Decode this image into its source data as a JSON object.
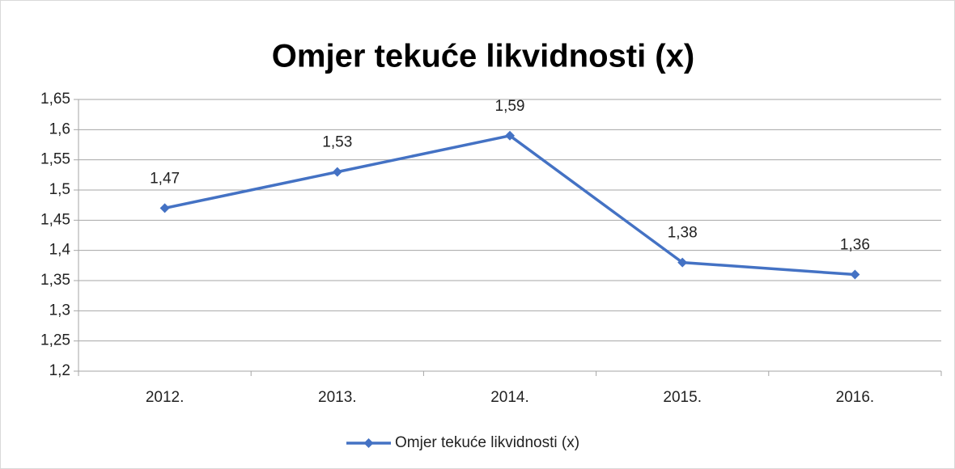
{
  "chart_data": {
    "type": "line",
    "title": "Omjer tekuće likvidnosti (x)",
    "categories": [
      "2012.",
      "2013.",
      "2014.",
      "2015.",
      "2016."
    ],
    "series": [
      {
        "name": "Omjer tekuće likvidnosti (x)",
        "color": "#4472c4",
        "values": [
          1.47,
          1.53,
          1.59,
          1.38,
          1.36
        ],
        "value_labels": [
          "1,47",
          "1,53",
          "1,59",
          "1,38",
          "1,36"
        ]
      }
    ],
    "ylim": [
      1.2,
      1.65
    ],
    "yticks": [
      {
        "value": 1.2,
        "label": "1,2"
      },
      {
        "value": 1.25,
        "label": "1,25"
      },
      {
        "value": 1.3,
        "label": "1,3"
      },
      {
        "value": 1.35,
        "label": "1,35"
      },
      {
        "value": 1.4,
        "label": "1,4"
      },
      {
        "value": 1.45,
        "label": "1,45"
      },
      {
        "value": 1.5,
        "label": "1,5"
      },
      {
        "value": 1.55,
        "label": "1,55"
      },
      {
        "value": 1.6,
        "label": "1,6"
      },
      {
        "value": 1.65,
        "label": "1,65"
      }
    ],
    "grid": true,
    "legend": "bottom"
  }
}
